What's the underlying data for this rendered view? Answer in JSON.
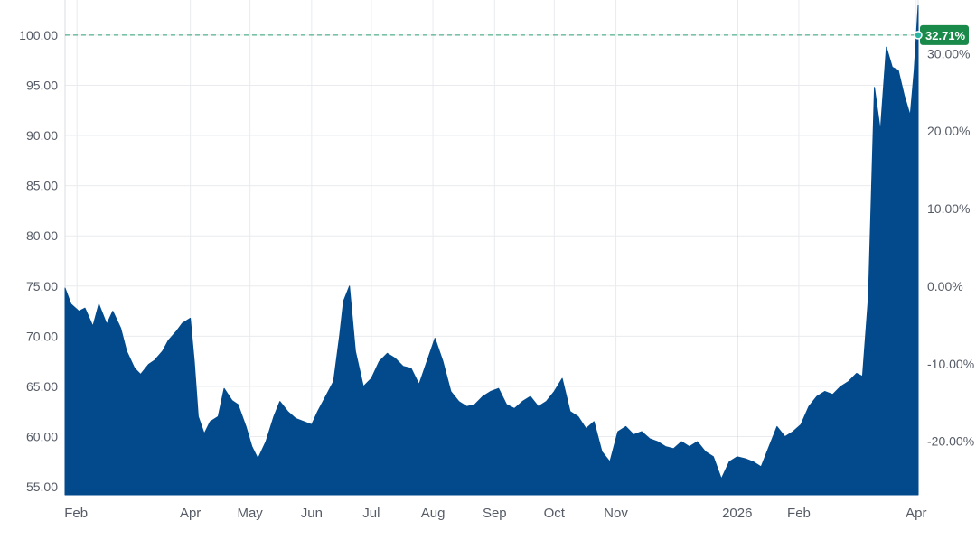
{
  "colors": {
    "area": "#034a8c",
    "grid": "#e9ebee",
    "reference_line": "#2e9f73",
    "badge": "#1a8a4a",
    "text": "#555b66"
  },
  "badge": {
    "label": "32.71%"
  },
  "chart_data": {
    "type": "area",
    "title": "",
    "xlabel": "",
    "ylabel": "",
    "grid": true,
    "legend": "none",
    "ylim": [
      54.2,
      103.5
    ],
    "y2lim": [
      -26.9,
      36.9
    ],
    "xlim": [
      "2025-01-28",
      "2026-04-02"
    ],
    "y_ticks": [
      "55.00",
      "60.00",
      "65.00",
      "70.00",
      "75.00",
      "80.00",
      "85.00",
      "90.00",
      "95.00",
      "100.00"
    ],
    "y2_ticks": [
      "-20.00%",
      "-10.00%",
      "0.00%",
      "10.00%",
      "20.00%",
      "30.00%"
    ],
    "x_ticks": [
      {
        "label": "Feb",
        "date": "2025-02-03"
      },
      {
        "label": "Apr",
        "date": "2025-04-01"
      },
      {
        "label": "May",
        "date": "2025-05-01"
      },
      {
        "label": "Jun",
        "date": "2025-06-01"
      },
      {
        "label": "Jul",
        "date": "2025-07-01"
      },
      {
        "label": "Aug",
        "date": "2025-08-01"
      },
      {
        "label": "Sep",
        "date": "2025-09-01"
      },
      {
        "label": "Oct",
        "date": "2025-10-01"
      },
      {
        "label": "Nov",
        "date": "2025-11-01"
      },
      {
        "label": "2026",
        "date": "2026-01-01"
      },
      {
        "label": "Feb",
        "date": "2026-02-01"
      },
      {
        "label": "Apr",
        "date": "2026-04-01"
      }
    ],
    "reference_value": 100.0,
    "series": [
      {
        "x": [
          "2025-01-28",
          "2025-01-31",
          "2025-02-04",
          "2025-02-07",
          "2025-02-11",
          "2025-02-14",
          "2025-02-18",
          "2025-02-21",
          "2025-02-25",
          "2025-02-28",
          "2025-03-04",
          "2025-03-07",
          "2025-03-11",
          "2025-03-14",
          "2025-03-18",
          "2025-03-21",
          "2025-03-25",
          "2025-03-28",
          "2025-04-01",
          "2025-04-03",
          "2025-04-05",
          "2025-04-08",
          "2025-04-11",
          "2025-04-15",
          "2025-04-18",
          "2025-04-22",
          "2025-04-25",
          "2025-04-29",
          "2025-05-02",
          "2025-05-05",
          "2025-05-09",
          "2025-05-13",
          "2025-05-16",
          "2025-05-20",
          "2025-05-24",
          "2025-05-28",
          "2025-06-01",
          "2025-06-04",
          "2025-06-08",
          "2025-06-12",
          "2025-06-15",
          "2025-06-17",
          "2025-06-20",
          "2025-06-23",
          "2025-06-27",
          "2025-07-01",
          "2025-07-05",
          "2025-07-09",
          "2025-07-13",
          "2025-07-17",
          "2025-07-21",
          "2025-07-25",
          "2025-07-29",
          "2025-08-02",
          "2025-08-06",
          "2025-08-10",
          "2025-08-14",
          "2025-08-18",
          "2025-08-22",
          "2025-08-26",
          "2025-08-30",
          "2025-09-03",
          "2025-09-07",
          "2025-09-11",
          "2025-09-15",
          "2025-09-19",
          "2025-09-23",
          "2025-09-27",
          "2025-10-01",
          "2025-10-05",
          "2025-10-09",
          "2025-10-13",
          "2025-10-17",
          "2025-10-21",
          "2025-10-25",
          "2025-10-29",
          "2025-11-02",
          "2025-11-06",
          "2025-11-10",
          "2025-11-14",
          "2025-11-18",
          "2025-11-22",
          "2025-11-26",
          "2025-11-30",
          "2025-12-04",
          "2025-12-08",
          "2025-12-12",
          "2025-12-16",
          "2025-12-20",
          "2025-12-24",
          "2025-12-28",
          "2026-01-01",
          "2026-01-05",
          "2026-01-09",
          "2026-01-13",
          "2026-01-17",
          "2026-01-21",
          "2026-01-25",
          "2026-01-29",
          "2026-02-02",
          "2026-02-06",
          "2026-02-10",
          "2026-02-14",
          "2026-02-18",
          "2026-02-22",
          "2026-02-26",
          "2026-03-02",
          "2026-03-05",
          "2026-03-08",
          "2026-03-11",
          "2026-03-14",
          "2026-03-17",
          "2026-03-20",
          "2026-03-23",
          "2026-03-26",
          "2026-03-29",
          "2026-03-31",
          "2026-04-02"
        ],
        "values": [
          74.8,
          73.2,
          72.5,
          72.8,
          71.0,
          73.2,
          71.2,
          72.5,
          70.8,
          68.5,
          66.8,
          66.2,
          67.2,
          67.6,
          68.5,
          69.6,
          70.5,
          71.3,
          71.8,
          67.5,
          62.0,
          60.3,
          61.5,
          62.0,
          64.8,
          63.6,
          63.2,
          61.0,
          59.0,
          57.8,
          59.5,
          62.0,
          63.5,
          62.5,
          61.8,
          61.5,
          61.2,
          62.5,
          64.0,
          65.5,
          70.0,
          73.5,
          75.0,
          68.5,
          65.0,
          65.8,
          67.5,
          68.3,
          67.8,
          67.0,
          66.8,
          65.2,
          67.5,
          69.8,
          67.5,
          64.5,
          63.5,
          63.0,
          63.2,
          64.0,
          64.5,
          64.8,
          63.2,
          62.8,
          63.5,
          64.0,
          63.0,
          63.5,
          64.5,
          65.8,
          62.5,
          62.0,
          60.8,
          61.5,
          58.5,
          57.5,
          60.5,
          61.0,
          60.2,
          60.5,
          59.8,
          59.5,
          59.0,
          58.8,
          59.5,
          59.0,
          59.5,
          58.5,
          58.0,
          55.8,
          57.5,
          58.0,
          57.8,
          57.5,
          57.0,
          59.0,
          61.0,
          60.0,
          60.5,
          61.2,
          63.0,
          64.0,
          64.5,
          64.2,
          65.0,
          65.5,
          66.3,
          66.0,
          74.0,
          94.8,
          90.5,
          98.8,
          96.8,
          96.5,
          94.0,
          92.0,
          96.5,
          103.0
        ]
      }
    ]
  }
}
